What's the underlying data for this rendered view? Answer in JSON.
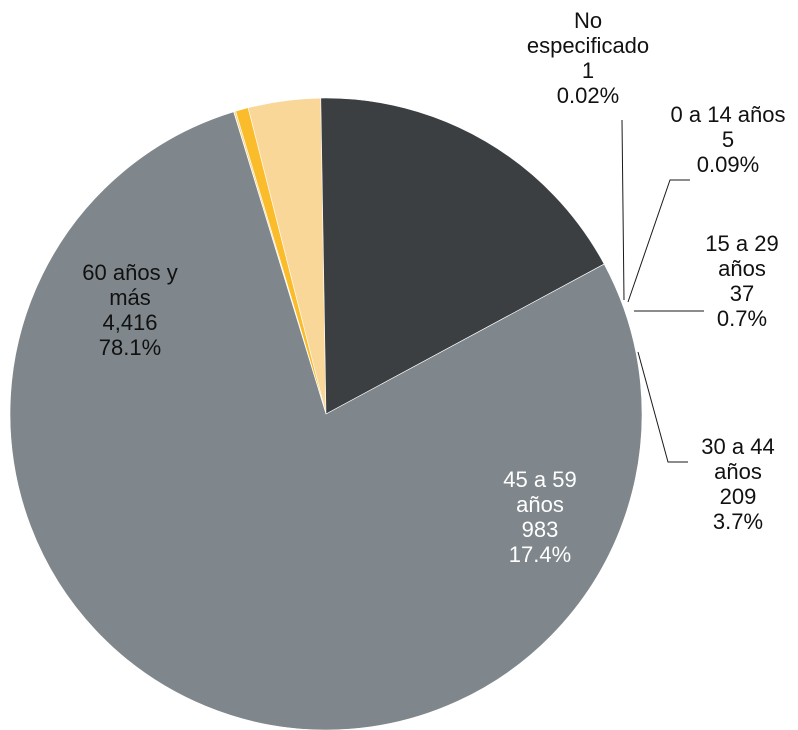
{
  "chart_data": {
    "type": "pie",
    "slices": [
      {
        "label": "No especificado",
        "label_lines": [
          "No",
          "especificado"
        ],
        "value": 1,
        "value_text": "1",
        "percent": "0.02%",
        "color": "#9aa0a4"
      },
      {
        "label": "0 a 14 años",
        "label_lines": [
          "0 a 14 años"
        ],
        "value": 5,
        "value_text": "5",
        "percent": "0.09%",
        "color": "#f5d27a"
      },
      {
        "label": "15 a 29 años",
        "label_lines": [
          "15 a 29",
          "años"
        ],
        "value": 37,
        "value_text": "37",
        "percent": "0.7%",
        "color": "#fbbc2c"
      },
      {
        "label": "30 a 44 años",
        "label_lines": [
          "30 a 44",
          "años"
        ],
        "value": 209,
        "value_text": "209",
        "percent": "3.7%",
        "color": "#f9d799"
      },
      {
        "label": "45 a 59 años",
        "label_lines": [
          "45 a 59",
          "años"
        ],
        "value": 983,
        "value_text": "983",
        "percent": "17.4%",
        "color": "#3c3f42"
      },
      {
        "label": "60 años y más",
        "label_lines": [
          "60 años y",
          "más"
        ],
        "value": 4416,
        "value_text": "4,416",
        "percent": "78.1%",
        "color": "#7f878c"
      }
    ],
    "leader_line_color": "#1a1a1a",
    "label_color": "#111111",
    "inside_label_color": "#ffffff"
  }
}
